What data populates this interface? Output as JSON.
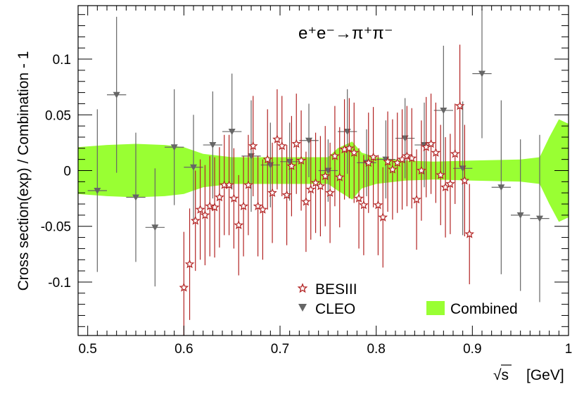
{
  "chart_data": {
    "type": "scatter",
    "title": "e⁺e⁻→π⁺π⁻",
    "xlabel": "[GeV]",
    "xlabel_symbol": "√s",
    "ylabel": "Cross section(exp) / Combination - 1",
    "xlim": [
      0.49,
      1.0
    ],
    "ylim": [
      -0.148,
      0.148
    ],
    "x_ticks": [
      {
        "value": 0.5,
        "label": "0.5"
      },
      {
        "value": 0.6,
        "label": "0.6"
      },
      {
        "value": 0.7,
        "label": "0.7"
      },
      {
        "value": 0.8,
        "label": "0.8"
      },
      {
        "value": 0.9,
        "label": "0.9"
      },
      {
        "value": 1.0,
        "label": "1"
      }
    ],
    "y_ticks": [
      {
        "value": -0.1,
        "label": "-0.1"
      },
      {
        "value": -0.05,
        "label": "-0.05"
      },
      {
        "value": 0,
        "label": "0"
      },
      {
        "value": 0.05,
        "label": "0.05"
      },
      {
        "value": 0.1,
        "label": "0.1"
      }
    ],
    "legend": [
      {
        "label": "BESIII",
        "marker": "open-star",
        "color": "#b22222"
      },
      {
        "label": "CLEO",
        "marker": "down-triangle",
        "color": "#666666"
      },
      {
        "label": "Combined",
        "marker": "filled-box",
        "color": "#99ff33"
      }
    ],
    "combined_band": {
      "name": "Combined",
      "color": "#99ff33",
      "x": [
        0.49,
        0.52,
        0.55,
        0.58,
        0.6,
        0.62,
        0.65,
        0.7,
        0.75,
        0.76,
        0.775,
        0.785,
        0.8,
        0.83,
        0.86,
        0.9,
        0.95,
        0.97,
        0.98,
        0.99,
        1.0
      ],
      "upper": [
        0.021,
        0.023,
        0.024,
        0.023,
        0.021,
        0.015,
        0.012,
        0.012,
        0.012,
        0.02,
        0.026,
        0.016,
        0.012,
        0.009,
        0.008,
        0.009,
        0.01,
        0.012,
        0.03,
        0.046,
        0.042
      ],
      "lower": [
        -0.021,
        -0.023,
        -0.024,
        -0.023,
        -0.021,
        -0.015,
        -0.012,
        -0.012,
        -0.012,
        -0.018,
        -0.026,
        -0.016,
        -0.012,
        -0.009,
        -0.008,
        -0.009,
        -0.01,
        -0.012,
        -0.03,
        -0.046,
        -0.042
      ]
    },
    "series": [
      {
        "name": "CLEO",
        "color": "#666666",
        "marker": "down-triangle",
        "points": [
          {
            "x": 0.51,
            "y": -0.018,
            "err": 0.073,
            "xerr": 0.01
          },
          {
            "x": 0.53,
            "y": 0.068,
            "err": 0.07,
            "xerr": 0.01
          },
          {
            "x": 0.55,
            "y": -0.024,
            "err": 0.058,
            "xerr": 0.01
          },
          {
            "x": 0.57,
            "y": -0.051,
            "err": 0.053,
            "xerr": 0.01
          },
          {
            "x": 0.59,
            "y": 0.021,
            "err": 0.052,
            "xerr": 0.01
          },
          {
            "x": 0.61,
            "y": 0.003,
            "err": 0.047,
            "xerr": 0.01
          },
          {
            "x": 0.63,
            "y": 0.023,
            "err": 0.048,
            "xerr": 0.01
          },
          {
            "x": 0.65,
            "y": 0.035,
            "err": 0.052,
            "xerr": 0.01
          },
          {
            "x": 0.67,
            "y": 0.013,
            "err": 0.05,
            "xerr": 0.01
          },
          {
            "x": 0.69,
            "y": 0.005,
            "err": 0.038,
            "xerr": 0.01
          },
          {
            "x": 0.71,
            "y": 0.008,
            "err": 0.035,
            "xerr": 0.01
          },
          {
            "x": 0.73,
            "y": 0.027,
            "err": 0.033,
            "xerr": 0.01
          },
          {
            "x": 0.75,
            "y": 0.0,
            "err": 0.028,
            "xerr": 0.01
          },
          {
            "x": 0.77,
            "y": 0.035,
            "err": 0.038,
            "xerr": 0.01
          },
          {
            "x": 0.79,
            "y": 0.007,
            "err": 0.03,
            "xerr": 0.01
          },
          {
            "x": 0.81,
            "y": 0.01,
            "err": 0.035,
            "xerr": 0.01
          },
          {
            "x": 0.83,
            "y": 0.029,
            "err": 0.036,
            "xerr": 0.01
          },
          {
            "x": 0.85,
            "y": 0.023,
            "err": 0.038,
            "xerr": 0.01
          },
          {
            "x": 0.87,
            "y": 0.054,
            "err": 0.058,
            "xerr": 0.01
          },
          {
            "x": 0.89,
            "y": 0.002,
            "err": 0.06,
            "xerr": 0.01
          },
          {
            "x": 0.91,
            "y": 0.087,
            "err": 0.058,
            "xerr": 0.01
          },
          {
            "x": 0.93,
            "y": -0.015,
            "err": 0.078,
            "xerr": 0.01
          },
          {
            "x": 0.95,
            "y": -0.04,
            "err": 0.068,
            "xerr": 0.01
          },
          {
            "x": 0.97,
            "y": -0.043,
            "err": 0.075,
            "xerr": 0.01
          }
        ]
      },
      {
        "name": "BESIII",
        "color": "#b22222",
        "marker": "open-star",
        "points": [
          {
            "x": 0.6,
            "y": -0.105,
            "err": 0.05
          },
          {
            "x": 0.606,
            "y": -0.084,
            "err": 0.05
          },
          {
            "x": 0.612,
            "y": -0.045,
            "err": 0.045
          },
          {
            "x": 0.617,
            "y": -0.035,
            "err": 0.045
          },
          {
            "x": 0.622,
            "y": -0.04,
            "err": 0.045
          },
          {
            "x": 0.627,
            "y": -0.032,
            "err": 0.045
          },
          {
            "x": 0.632,
            "y": -0.033,
            "err": 0.045
          },
          {
            "x": 0.637,
            "y": -0.024,
            "err": 0.045
          },
          {
            "x": 0.642,
            "y": -0.013,
            "err": 0.045
          },
          {
            "x": 0.647,
            "y": -0.013,
            "err": 0.045
          },
          {
            "x": 0.652,
            "y": -0.025,
            "err": 0.045
          },
          {
            "x": 0.657,
            "y": -0.049,
            "err": 0.045
          },
          {
            "x": 0.662,
            "y": -0.032,
            "err": 0.045
          },
          {
            "x": 0.667,
            "y": -0.013,
            "err": 0.045
          },
          {
            "x": 0.672,
            "y": 0.022,
            "err": 0.045
          },
          {
            "x": 0.677,
            "y": -0.032,
            "err": 0.045
          },
          {
            "x": 0.682,
            "y": -0.035,
            "err": 0.045
          },
          {
            "x": 0.687,
            "y": 0.01,
            "err": 0.045
          },
          {
            "x": 0.692,
            "y": -0.02,
            "err": 0.045
          },
          {
            "x": 0.697,
            "y": 0.028,
            "err": 0.045
          },
          {
            "x": 0.702,
            "y": 0.022,
            "err": 0.045
          },
          {
            "x": 0.707,
            "y": -0.022,
            "err": 0.045
          },
          {
            "x": 0.712,
            "y": 0.004,
            "err": 0.045
          },
          {
            "x": 0.717,
            "y": 0.024,
            "err": 0.045
          },
          {
            "x": 0.722,
            "y": 0.009,
            "err": 0.045
          },
          {
            "x": 0.727,
            "y": -0.028,
            "err": 0.045
          },
          {
            "x": 0.732,
            "y": -0.017,
            "err": 0.045
          },
          {
            "x": 0.737,
            "y": -0.011,
            "err": 0.045
          },
          {
            "x": 0.742,
            "y": -0.014,
            "err": 0.045
          },
          {
            "x": 0.747,
            "y": -0.005,
            "err": 0.045
          },
          {
            "x": 0.752,
            "y": -0.02,
            "err": 0.045
          },
          {
            "x": 0.757,
            "y": 0.013,
            "err": 0.045
          },
          {
            "x": 0.762,
            "y": -0.006,
            "err": 0.045
          },
          {
            "x": 0.767,
            "y": 0.019,
            "err": 0.045
          },
          {
            "x": 0.772,
            "y": 0.02,
            "err": 0.045
          },
          {
            "x": 0.777,
            "y": 0.016,
            "err": 0.045
          },
          {
            "x": 0.782,
            "y": -0.025,
            "err": 0.045
          },
          {
            "x": 0.787,
            "y": -0.031,
            "err": 0.045
          },
          {
            "x": 0.792,
            "y": 0.007,
            "err": 0.045
          },
          {
            "x": 0.797,
            "y": 0.012,
            "err": 0.045
          },
          {
            "x": 0.802,
            "y": -0.031,
            "err": 0.045
          },
          {
            "x": 0.807,
            "y": -0.042,
            "err": 0.045
          },
          {
            "x": 0.812,
            "y": 0.008,
            "err": 0.045
          },
          {
            "x": 0.817,
            "y": 0.001,
            "err": 0.045
          },
          {
            "x": 0.822,
            "y": 0.007,
            "err": 0.045
          },
          {
            "x": 0.827,
            "y": 0.01,
            "err": 0.045
          },
          {
            "x": 0.832,
            "y": 0.013,
            "err": 0.045
          },
          {
            "x": 0.837,
            "y": 0.011,
            "err": 0.045
          },
          {
            "x": 0.842,
            "y": -0.026,
            "err": 0.045
          },
          {
            "x": 0.847,
            "y": 0.0,
            "err": 0.045
          },
          {
            "x": 0.852,
            "y": 0.021,
            "err": 0.045
          },
          {
            "x": 0.857,
            "y": 0.024,
            "err": 0.045
          },
          {
            "x": 0.862,
            "y": 0.016,
            "err": 0.045
          },
          {
            "x": 0.867,
            "y": -0.004,
            "err": 0.045
          },
          {
            "x": 0.872,
            "y": -0.015,
            "err": 0.045
          },
          {
            "x": 0.877,
            "y": -0.012,
            "err": 0.045
          },
          {
            "x": 0.882,
            "y": 0.015,
            "err": 0.045
          },
          {
            "x": 0.887,
            "y": 0.058,
            "err": 0.055
          },
          {
            "x": 0.892,
            "y": -0.009,
            "err": 0.05
          },
          {
            "x": 0.897,
            "y": -0.057,
            "err": 0.045
          }
        ]
      }
    ]
  }
}
